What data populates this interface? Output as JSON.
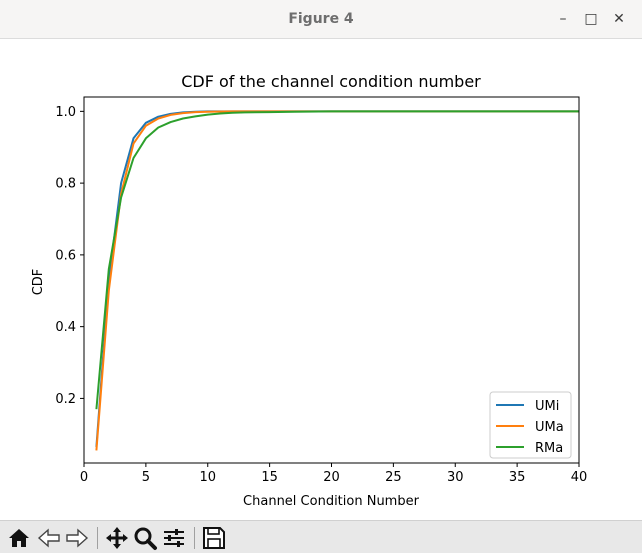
{
  "window": {
    "title": "Figure 4",
    "controls": {
      "minimize": "–",
      "maximize": "□",
      "close": "✕"
    }
  },
  "toolbar": {
    "buttons": [
      "home-icon",
      "back-icon",
      "forward-icon",
      "pan-icon",
      "zoom-icon",
      "configure-subplots-icon",
      "save-icon"
    ]
  },
  "chart_data": {
    "type": "line",
    "title": "CDF of the channel condition number",
    "xlabel": "Channel Condition Number",
    "ylabel": "CDF",
    "xlim": [
      0,
      40
    ],
    "ylim": [
      0.02,
      1.04
    ],
    "xticks": [
      0,
      5,
      10,
      15,
      20,
      25,
      30,
      35,
      40
    ],
    "yticks": [
      0.2,
      0.4,
      0.6,
      0.8,
      1.0
    ],
    "xtick_labels": [
      "0",
      "5",
      "10",
      "15",
      "20",
      "25",
      "30",
      "35",
      "40"
    ],
    "ytick_labels": [
      "0.2",
      "0.4",
      "0.6",
      "0.8",
      "1.0"
    ],
    "legend_position": "bottom-right",
    "grid": false,
    "series": [
      {
        "name": "UMi",
        "color": "#1f77b4",
        "x": [
          1,
          2,
          3,
          4,
          5,
          6,
          7,
          8,
          9,
          10,
          12,
          15,
          20,
          40
        ],
        "y": [
          0.065,
          0.53,
          0.8,
          0.925,
          0.968,
          0.985,
          0.993,
          0.997,
          0.999,
          1.0,
          1.0,
          1.0,
          1.0,
          1.0
        ]
      },
      {
        "name": "UMa",
        "color": "#ff7f0e",
        "x": [
          1,
          2,
          3,
          4,
          5,
          6,
          7,
          8,
          9,
          10,
          12,
          15,
          20,
          40
        ],
        "y": [
          0.055,
          0.5,
          0.77,
          0.91,
          0.96,
          0.98,
          0.99,
          0.995,
          0.998,
          0.999,
          1.0,
          1.0,
          1.0,
          1.0
        ]
      },
      {
        "name": "RMa",
        "color": "#2ca02c",
        "x": [
          1,
          2,
          3,
          4,
          5,
          6,
          7,
          8,
          9,
          10,
          11,
          12,
          13,
          15,
          17,
          20,
          25,
          40
        ],
        "y": [
          0.17,
          0.56,
          0.76,
          0.87,
          0.925,
          0.955,
          0.97,
          0.98,
          0.986,
          0.991,
          0.994,
          0.996,
          0.997,
          0.998,
          0.999,
          1.0,
          1.0,
          1.0
        ]
      }
    ]
  }
}
